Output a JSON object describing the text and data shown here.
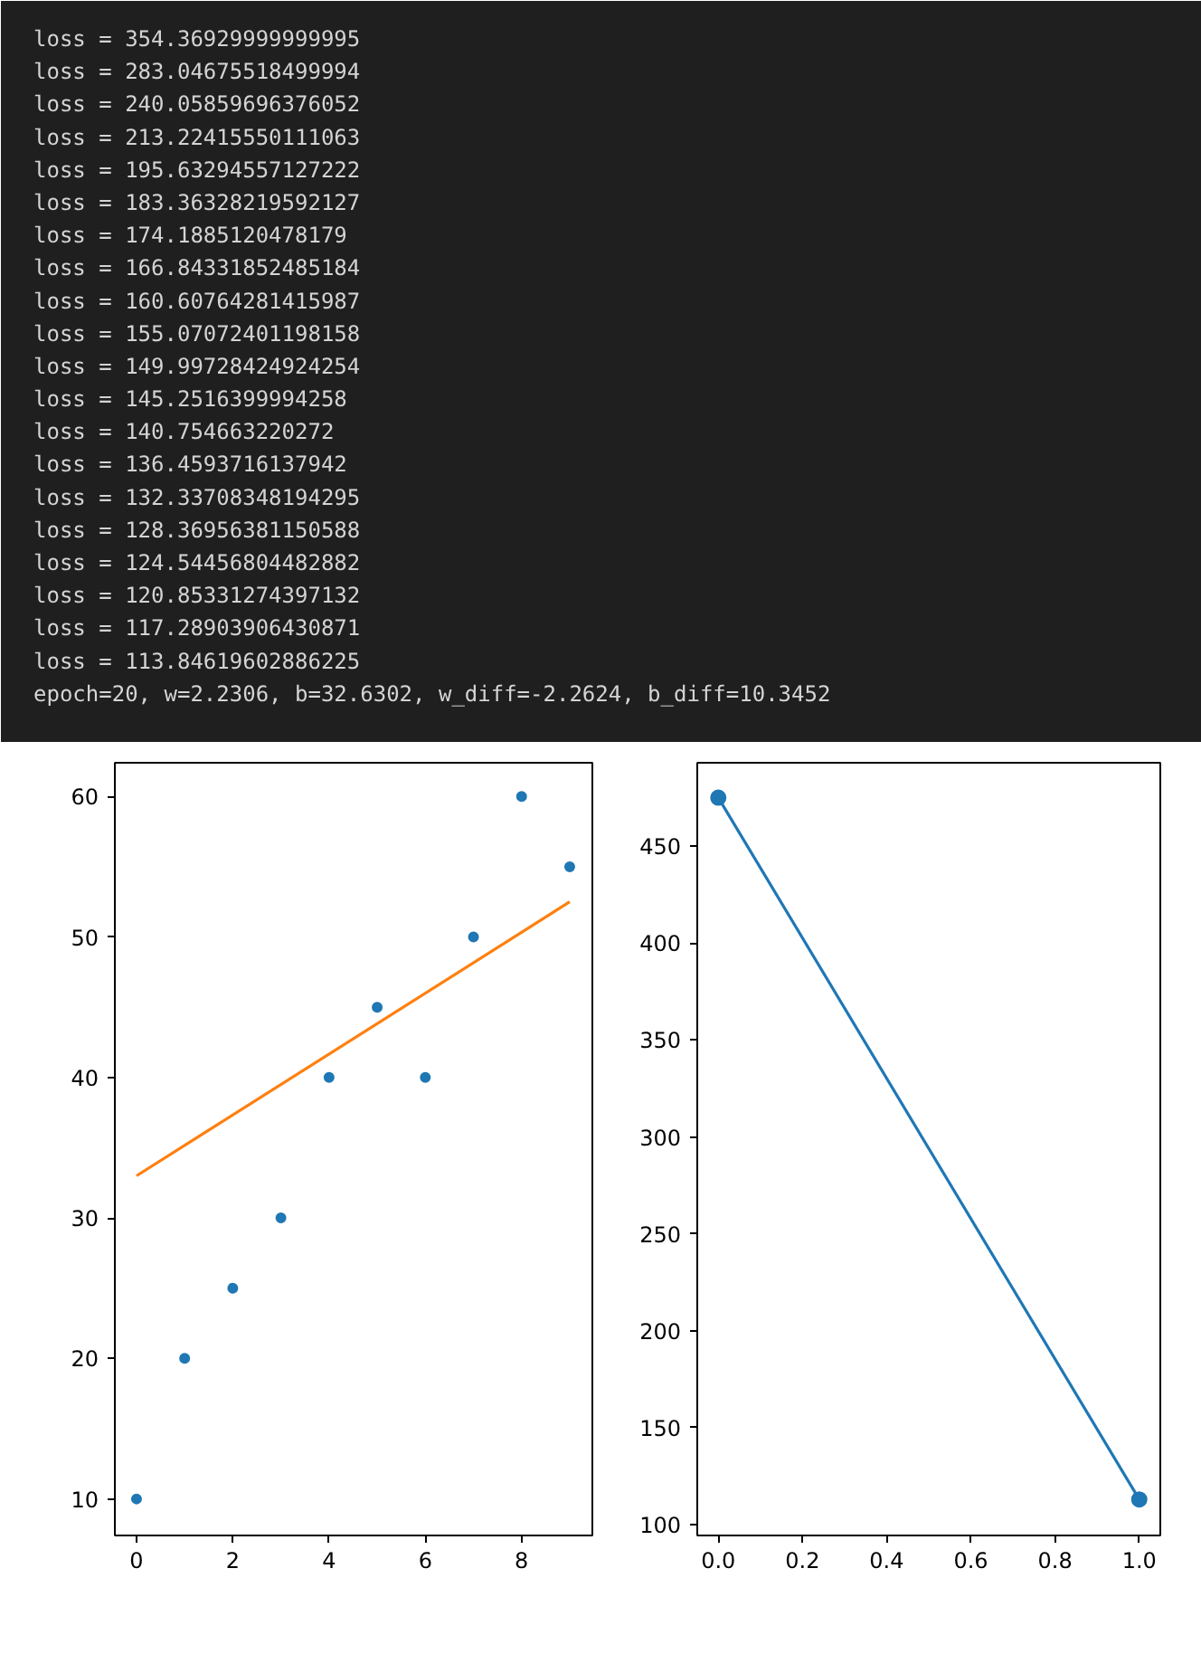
{
  "chart_data": [
    {
      "type": "other",
      "annotations": [
        "loss =  354.36929999999995",
        "loss =  283.04675518499994",
        "loss =  240.05859696376052",
        "loss =  213.22415550111063",
        "loss =  195.63294557127222",
        "loss =  183.36328219592127",
        "loss =  174.1885120478179",
        "loss =  166.84331852485184",
        "loss =  160.60764281415987",
        "loss =  155.07072401198158",
        "loss =  149.99728424924254",
        "loss =  145.2516399994258",
        "loss =  140.754663220272",
        "loss =  136.4593716137942",
        "loss =  132.33708348194295",
        "loss =  128.36956381150588",
        "loss =  124.54456804482882",
        "loss =  120.85331274397132",
        "loss =  117.28903906430871",
        "loss =  113.84619602886225",
        "epoch=20, w=2.2306, b=32.6302, w_diff=-2.2624, b_diff=10.3452"
      ]
    },
    {
      "type": "scatter",
      "x": [
        0,
        1,
        2,
        3,
        4,
        5,
        6,
        7,
        8,
        9
      ],
      "xlim": [
        -0.45,
        9.47
      ],
      "ylim": [
        7.4,
        62.4
      ],
      "xticks": [
        0,
        2,
        4,
        6,
        8
      ],
      "yticks": [
        10,
        20,
        30,
        40,
        50,
        60
      ],
      "grid": false,
      "marker": "circle",
      "series": [
        {
          "type": "scatter",
          "color": "#1f77b4",
          "values": [
            10,
            20,
            25,
            30,
            40,
            45,
            40,
            50,
            60,
            55
          ]
        },
        {
          "type": "line",
          "color": "#ff7f0e",
          "x": [
            0,
            9
          ],
          "values": [
            33,
            52.5
          ],
          "marker": "none"
        }
      ]
    },
    {
      "type": "line",
      "x": [
        0,
        1
      ],
      "xlim": [
        -0.05,
        1.05
      ],
      "ylim": [
        94.4,
        493
      ],
      "xticks": [
        {
          "value": 0,
          "label": "0.0"
        },
        {
          "value": 0.2,
          "label": "0.2"
        },
        {
          "value": 0.4,
          "label": "0.4"
        },
        {
          "value": 0.6,
          "label": "0.6"
        },
        {
          "value": 0.8,
          "label": "0.8"
        },
        {
          "value": 1,
          "label": "1.0"
        }
      ],
      "yticks": [
        100,
        150,
        200,
        250,
        300,
        350,
        400,
        450
      ],
      "grid": false,
      "marker": "circle",
      "series": [
        {
          "color": "#1f77b4",
          "values": [
            475,
            113
          ]
        }
      ]
    }
  ]
}
